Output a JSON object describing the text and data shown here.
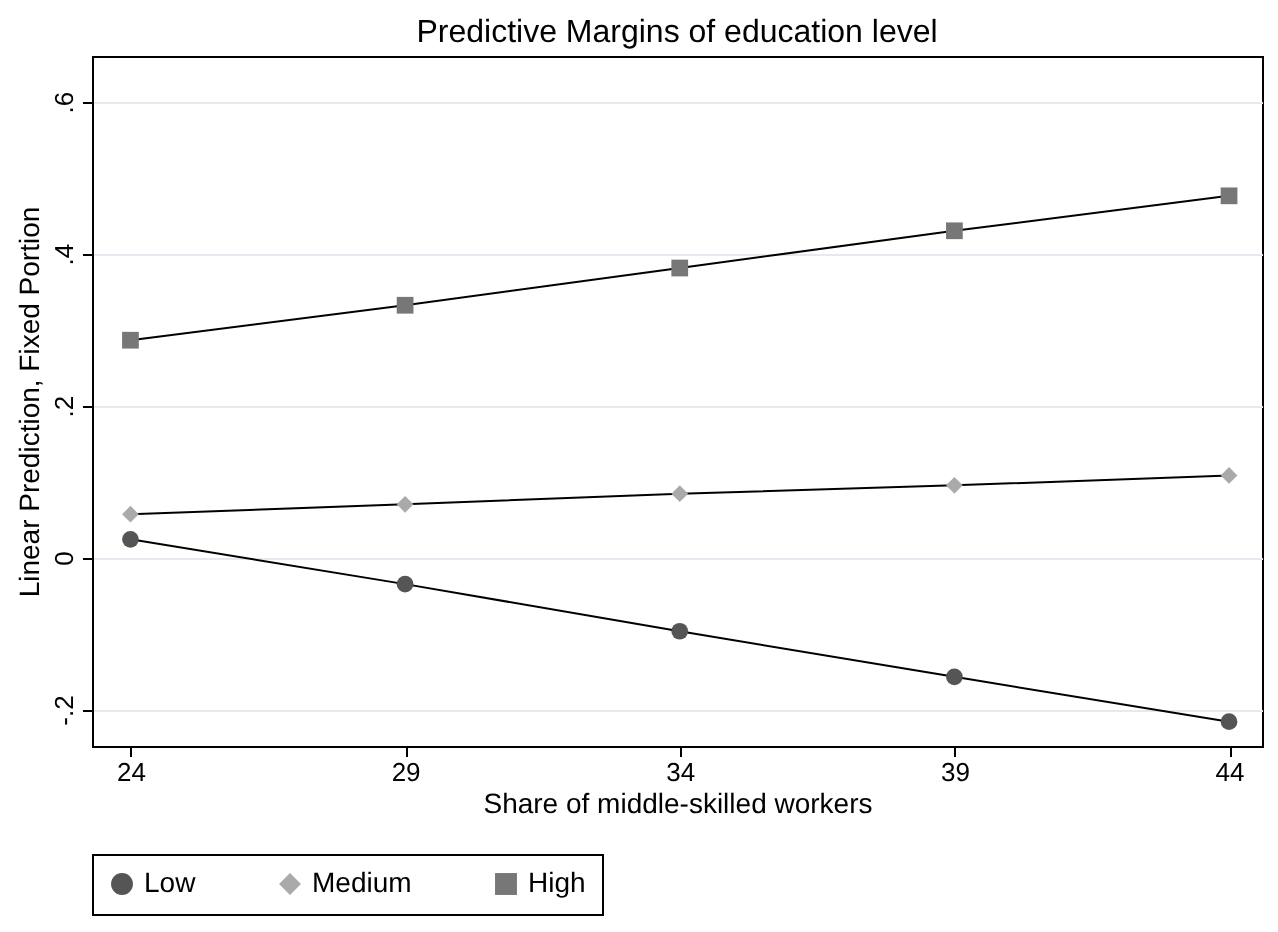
{
  "chart_data": {
    "type": "line",
    "title": "Predictive Margins of education level",
    "xlabel": "Share of middle-skilled workers",
    "ylabel": "Linear Prediction, Fixed Portion",
    "x": [
      24,
      29,
      34,
      39,
      44
    ],
    "series": [
      {
        "name": "Low",
        "color": "#555555",
        "marker": "circle",
        "values": [
          0.024,
          -0.035,
          -0.097,
          -0.157,
          -0.216
        ]
      },
      {
        "name": "Medium",
        "color": "#aaaaaa",
        "marker": "diamond",
        "values": [
          0.057,
          0.07,
          0.084,
          0.095,
          0.108
        ]
      },
      {
        "name": "High",
        "color": "#777777",
        "marker": "square",
        "values": [
          0.286,
          0.332,
          0.381,
          0.43,
          0.476
        ]
      }
    ],
    "xlim": [
      23.3,
      44.6
    ],
    "ylim": [
      -0.248,
      0.66
    ],
    "xticks": [
      24,
      29,
      34,
      39,
      44
    ],
    "yticks": [
      {
        "value": -0.2,
        "label": "-.2"
      },
      0,
      {
        "value": 0.2,
        "label": ".2"
      },
      {
        "value": 0.4,
        "label": ".4"
      },
      {
        "value": 0.6,
        "label": ".6"
      }
    ],
    "grid": "y",
    "legend": "bottom",
    "line_style": "solid"
  }
}
